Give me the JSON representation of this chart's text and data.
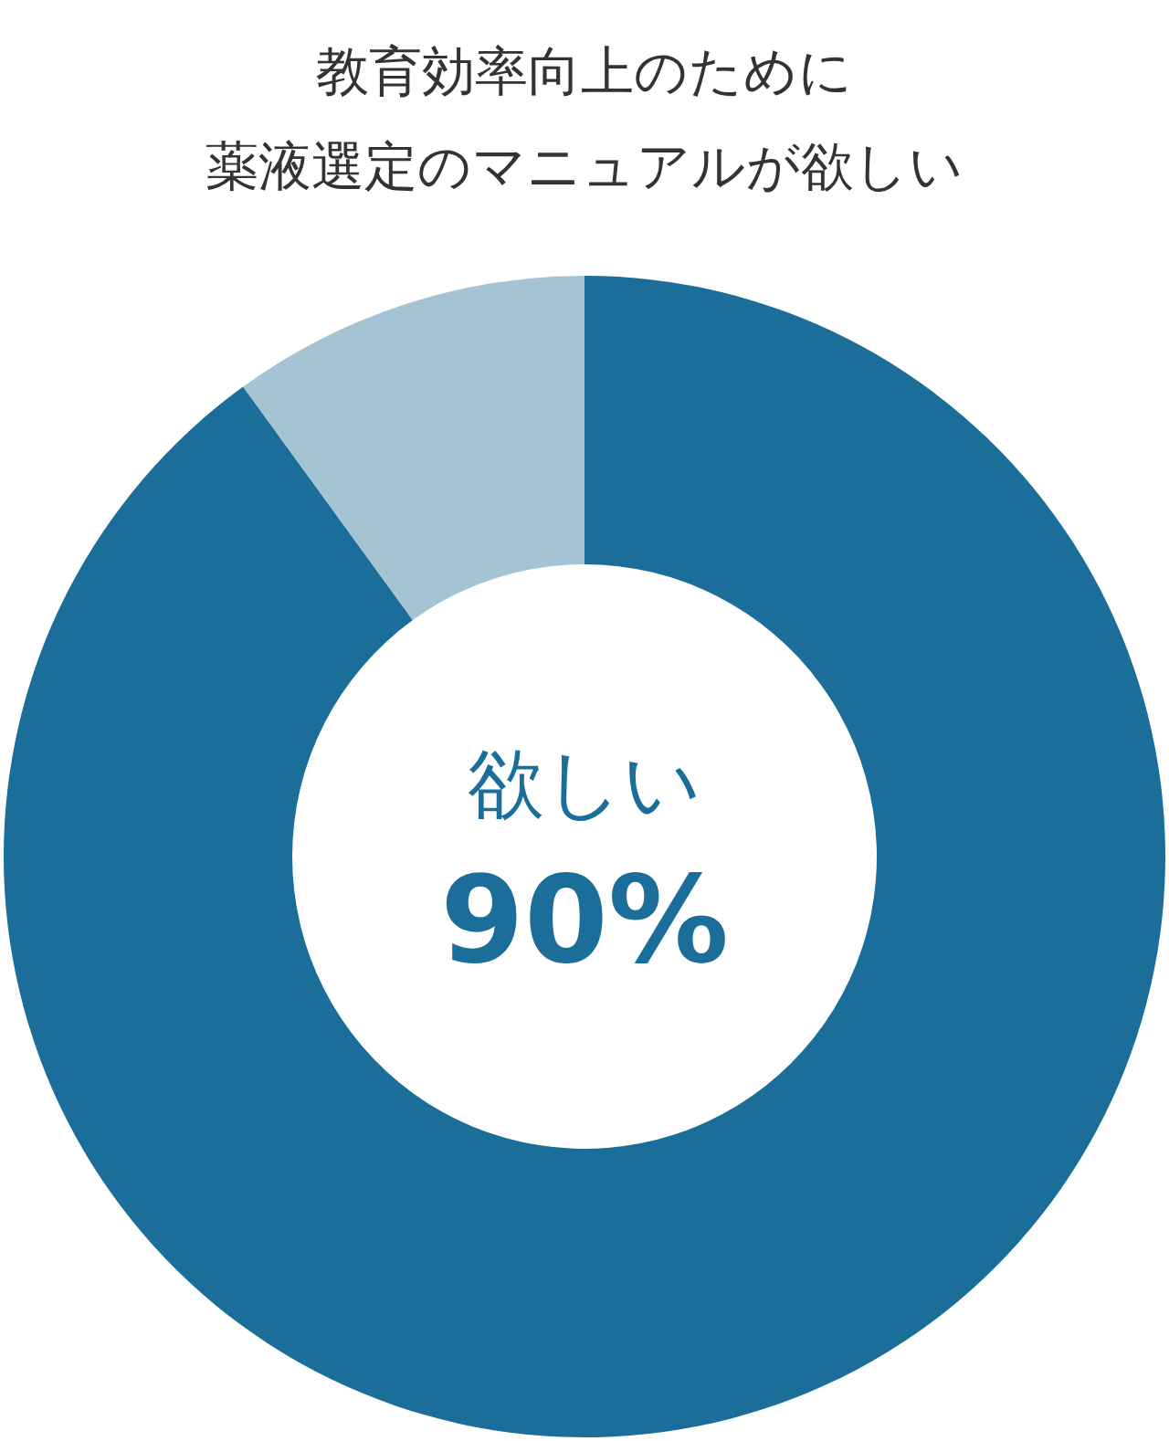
{
  "chart_data": {
    "type": "donut",
    "title": "教育効率向上のために",
    "subtitle": "薬液選定のマニュアルが欲しい",
    "categories": [
      "欲しい",
      null
    ],
    "values": [
      90,
      10
    ],
    "colors": [
      "#1a6e99",
      "#a4c3d3"
    ],
    "value_labels": [
      "90%",
      null
    ]
  }
}
